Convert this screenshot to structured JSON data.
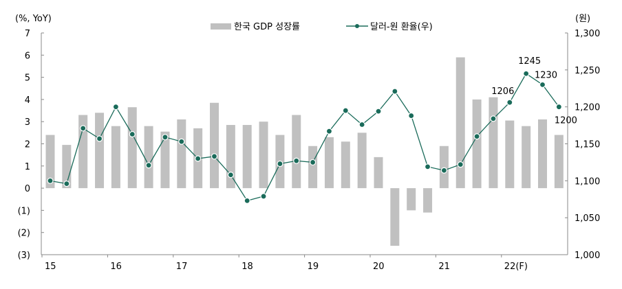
{
  "chart_data": {
    "type": "bar+line",
    "left_axis": {
      "label": "(%, YoY)",
      "ylim": [
        -3,
        7
      ],
      "ticks": [
        "(3)",
        "(2)",
        "(1)",
        "0",
        "1",
        "2",
        "3",
        "4",
        "5",
        "6",
        "7"
      ],
      "tick_values": [
        -3,
        -2,
        -1,
        0,
        1,
        2,
        3,
        4,
        5,
        6,
        7
      ]
    },
    "right_axis": {
      "label": "(원)",
      "ylim": [
        1000,
        1300
      ],
      "ticks": [
        "1,000",
        "1,050",
        "1,100",
        "1,150",
        "1,200",
        "1,250",
        "1,300"
      ],
      "tick_values": [
        1000,
        1050,
        1100,
        1150,
        1200,
        1250,
        1300
      ]
    },
    "x_ticks": [
      "15",
      "16",
      "17",
      "18",
      "19",
      "20",
      "21",
      "22(F)"
    ],
    "grid": false,
    "legend_position": "top",
    "series": [
      {
        "name": "한국 GDP 성장률",
        "type": "bar",
        "axis": "left",
        "color": "#c0c0c0",
        "values": [
          2.4,
          1.95,
          3.3,
          3.4,
          2.8,
          3.65,
          2.8,
          2.55,
          3.1,
          2.7,
          3.85,
          2.85,
          2.85,
          3.0,
          2.4,
          3.3,
          1.9,
          2.3,
          2.1,
          2.5,
          1.4,
          -2.6,
          -1.0,
          -1.1,
          1.9,
          5.9,
          4.0,
          4.1,
          3.05,
          2.8,
          3.1,
          2.4
        ]
      },
      {
        "name": "달러-원 환율(우)",
        "type": "line",
        "axis": "right",
        "color": "#1a6b5a",
        "values": [
          1100,
          1096,
          1171,
          1157,
          1200,
          1163,
          1121,
          1159,
          1153,
          1130,
          1133,
          1108,
          1073,
          1079,
          1123,
          1127,
          1125,
          1167,
          1195,
          1176,
          1194,
          1221,
          1188,
          1119,
          1114,
          1122,
          1160,
          1184,
          1206,
          1245,
          1230,
          1200
        ]
      }
    ],
    "annotations": [
      {
        "index": 28,
        "text": "1206"
      },
      {
        "index": 29,
        "text": "1245"
      },
      {
        "index": 30,
        "text": "1230"
      },
      {
        "index": 31,
        "text": "1200"
      }
    ]
  }
}
